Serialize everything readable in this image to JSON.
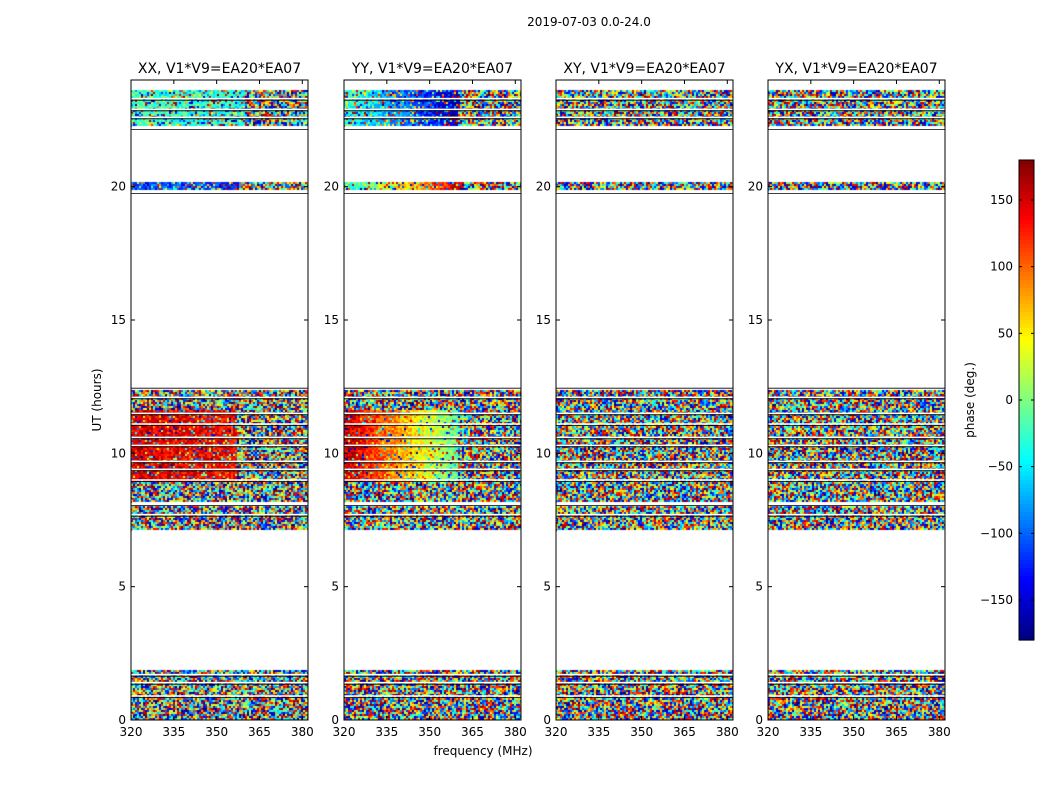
{
  "chart_data": {
    "type": "heatmap",
    "suptitle": "2019-07-03 0.0-24.0",
    "xlabel": "frequency (MHz)",
    "ylabel": "UT (hours)",
    "xlim": [
      320,
      382
    ],
    "ylim": [
      0,
      24
    ],
    "xticks": [
      320,
      335,
      350,
      365,
      380
    ],
    "yticks": [
      0,
      5,
      10,
      15,
      20
    ],
    "colorbar": {
      "label": "phase (deg.)",
      "range": [
        -180,
        180
      ],
      "ticks": [
        150,
        100,
        50,
        0,
        -50,
        -100,
        -150
      ],
      "tick_labels": [
        "150",
        "100",
        "50",
        "0",
        "−50",
        "−100",
        "−150"
      ],
      "colormap": "jet"
    },
    "observed_time_ranges_hours": [
      [
        0.0,
        1.9
      ],
      [
        7.1,
        8.0
      ],
      [
        8.2,
        12.4
      ],
      [
        19.9,
        20.2
      ],
      [
        22.3,
        23.6
      ]
    ],
    "gap_lines_hours": [
      0.9,
      1.4,
      1.7,
      7.7,
      8.1,
      9.0,
      9.4,
      9.7,
      10.3,
      10.6,
      11.1,
      11.5,
      12.1,
      12.5,
      19.8,
      22.2,
      22.6,
      22.9,
      23.3
    ],
    "panels": [
      {
        "title": "XX, V1*V9=EA20*EA07",
        "patterns": [
          {
            "t0": 8.9,
            "t1": 11.6,
            "f0": 320,
            "f1": 357,
            "phase_start": 150,
            "phase_end": 130,
            "coherence": 0.8
          },
          {
            "t0": 22.3,
            "t1": 23.6,
            "f0": 320,
            "f1": 360,
            "phase_start": -20,
            "phase_end": -40,
            "coherence": 0.6
          },
          {
            "t0": 19.9,
            "t1": 20.2,
            "f0": 320,
            "f1": 358,
            "phase_start": -100,
            "phase_end": -120,
            "coherence": 0.6
          }
        ]
      },
      {
        "title": "YY, V1*V9=EA20*EA07",
        "patterns": [
          {
            "t0": 8.9,
            "t1": 11.6,
            "f0": 320,
            "f1": 360,
            "phase_start": 160,
            "phase_end": -10,
            "coherence": 0.85
          },
          {
            "t0": 22.3,
            "t1": 23.6,
            "f0": 320,
            "f1": 360,
            "phase_start": -20,
            "phase_end": -160,
            "coherence": 0.7
          },
          {
            "t0": 19.9,
            "t1": 20.2,
            "f0": 320,
            "f1": 362,
            "phase_start": -40,
            "phase_end": 160,
            "coherence": 0.7
          }
        ]
      },
      {
        "title": "XY, V1*V9=EA20*EA07",
        "patterns": []
      },
      {
        "title": "YX, V1*V9=EA20*EA07",
        "patterns": []
      }
    ]
  }
}
